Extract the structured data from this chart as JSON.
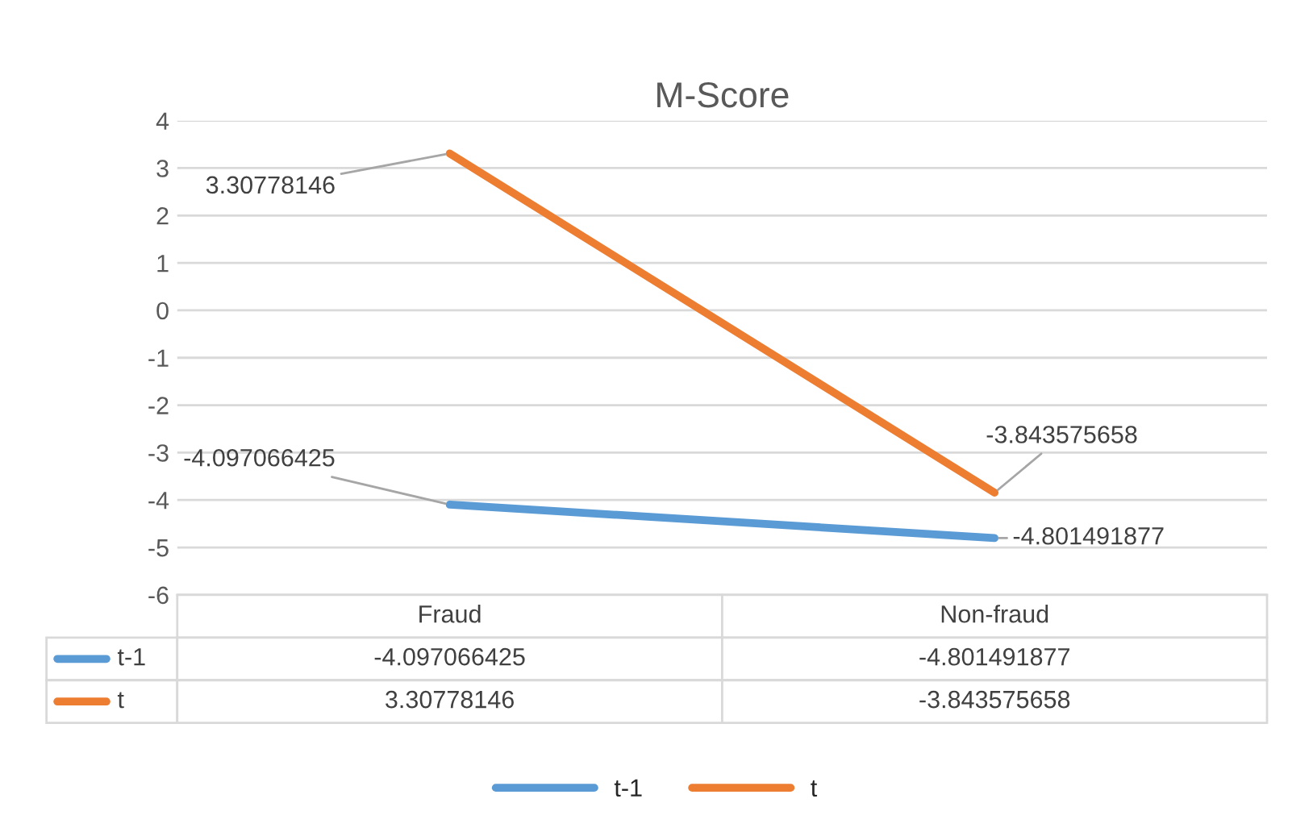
{
  "chart_data": {
    "type": "line",
    "title": "M-Score",
    "categories": [
      "Fraud",
      "Non-fraud"
    ],
    "series": [
      {
        "name": "t-1",
        "color": "#5b9bd5",
        "values": [
          -4.097066425,
          -4.801491877
        ],
        "value_labels": [
          "-4.097066425",
          "-4.801491877"
        ]
      },
      {
        "name": "t",
        "color": "#ed7d31",
        "values": [
          3.30778146,
          -3.843575658
        ],
        "value_labels": [
          "3.30778146",
          "-3.843575658"
        ]
      }
    ],
    "ylim": [
      -6,
      4
    ],
    "yticks": [
      -6,
      -5,
      -4,
      -3,
      -2,
      -1,
      0,
      1,
      2,
      3,
      4
    ],
    "grid": "y",
    "data_labels": true,
    "legend": "bottom",
    "tick_labels": "y",
    "marker": "none",
    "line_style": "solid"
  }
}
